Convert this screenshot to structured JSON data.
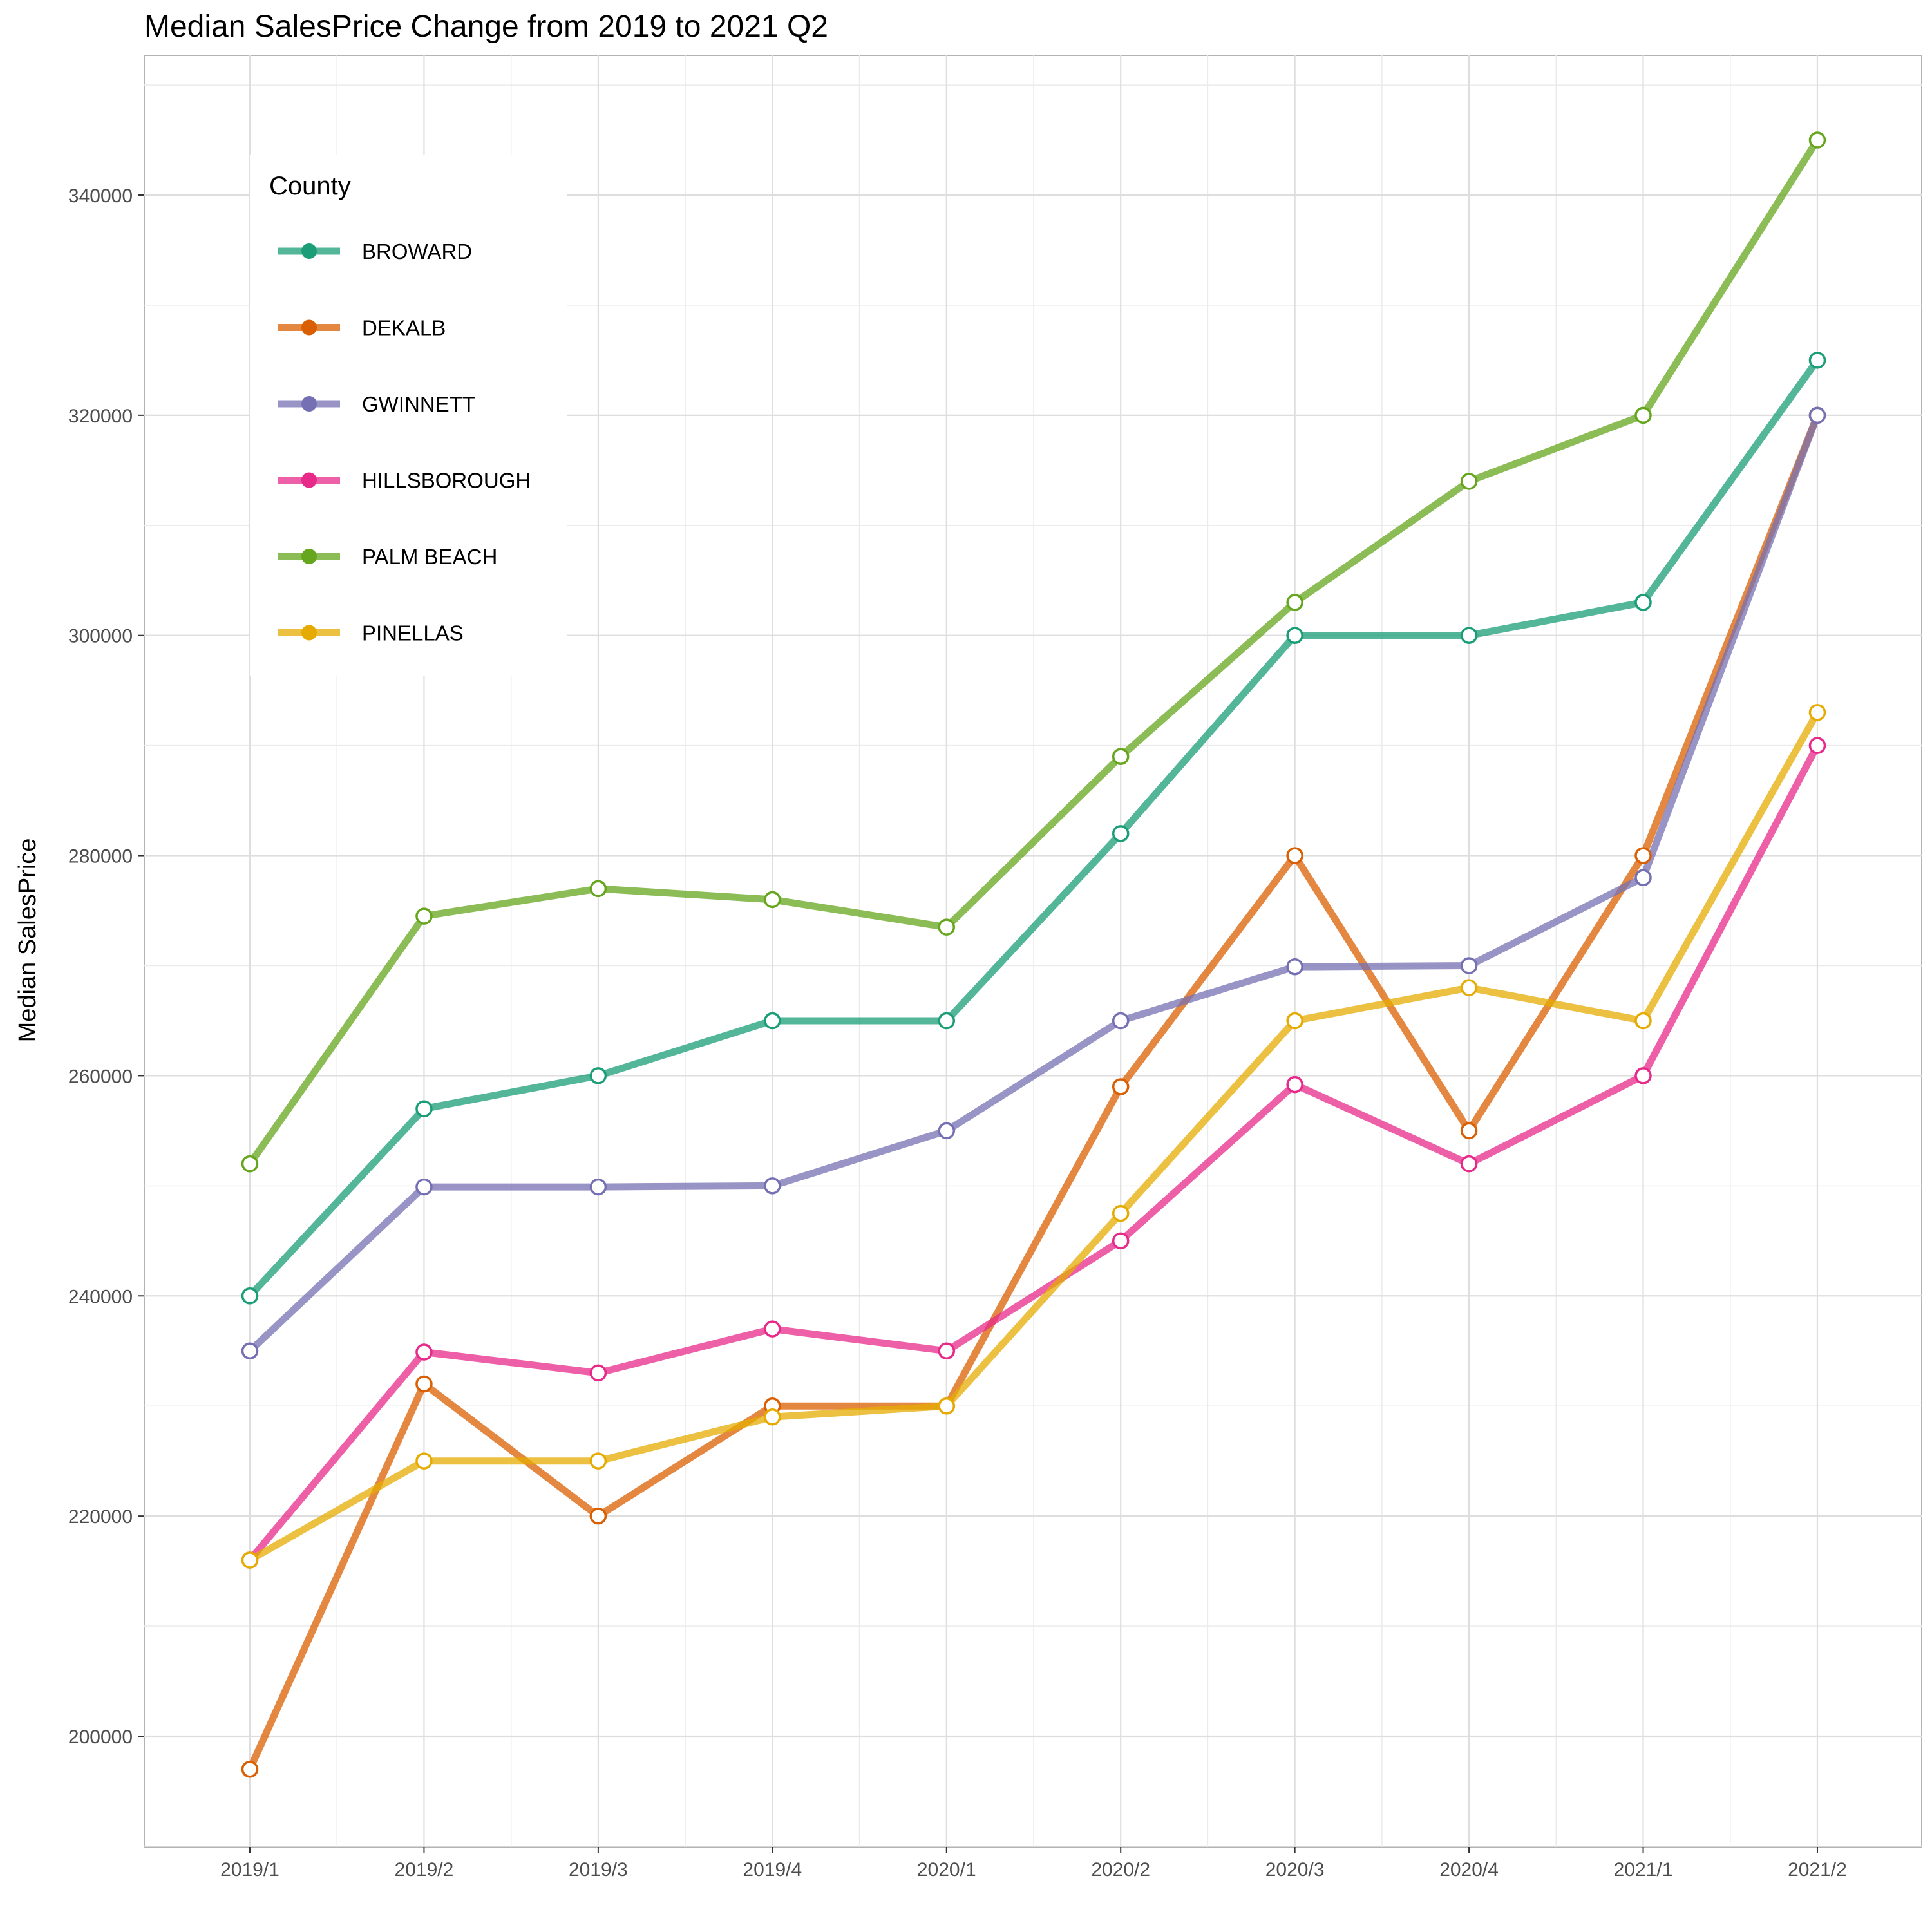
{
  "chart_data": {
    "type": "line",
    "title": "Median SalesPrice Change from 2019 to 2021 Q2",
    "xlabel": "",
    "ylabel": "Median SalesPrice",
    "categories": [
      "2019/1",
      "2019/2",
      "2019/3",
      "2019/4",
      "2020/1",
      "2020/2",
      "2020/3",
      "2020/4",
      "2021/1",
      "2021/2"
    ],
    "ylim": [
      190000,
      350000
    ],
    "yticks": [
      200000,
      220000,
      240000,
      260000,
      280000,
      300000,
      320000,
      340000
    ],
    "ytick_labels": [
      "200000",
      "220000",
      "240000",
      "260000",
      "280000",
      "300000",
      "320000",
      "340000"
    ],
    "grid": true,
    "legend": {
      "title": "County",
      "placement": "top-left"
    },
    "series": [
      {
        "name": "BROWARD",
        "color": "#1b9e77",
        "values": [
          240000,
          257000,
          260000,
          265000,
          265000,
          282000,
          300000,
          300000,
          303000,
          325000
        ]
      },
      {
        "name": "DEKALB",
        "color": "#d95f02",
        "values": [
          197000,
          232000,
          220000,
          230000,
          230000,
          259000,
          280000,
          255000,
          280000,
          320000
        ]
      },
      {
        "name": "GWINNETT",
        "color": "#7570b3",
        "values": [
          235000,
          249900,
          249900,
          250000,
          255000,
          265000,
          269900,
          270000,
          278000,
          320000
        ]
      },
      {
        "name": "HILLSBOROUGH",
        "color": "#e7298a",
        "values": [
          216000,
          234900,
          233000,
          237000,
          235000,
          245000,
          259200,
          252000,
          260000,
          290000
        ]
      },
      {
        "name": "PALM BEACH",
        "color": "#66a61e",
        "values": [
          252000,
          274500,
          277000,
          276000,
          273500,
          289000,
          303000,
          314000,
          320000,
          345000
        ]
      },
      {
        "name": "PINELLAS",
        "color": "#e6ab02",
        "values": [
          216000,
          225000,
          225000,
          229000,
          230000,
          247500,
          265000,
          268000,
          265000,
          293000
        ]
      }
    ]
  }
}
